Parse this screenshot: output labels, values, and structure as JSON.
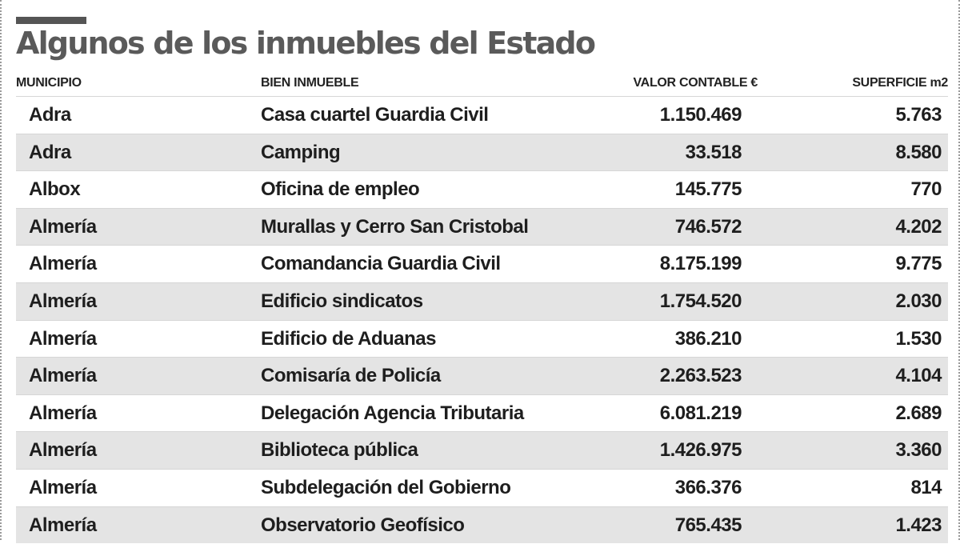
{
  "chart_data": {
    "type": "table",
    "title": "Algunos de los inmuebles del Estado",
    "columns": [
      "MUNICIPIO",
      "BIEN INMUEBLE",
      "VALOR CONTABLE €",
      "SUPERFICIE m2"
    ],
    "rows": [
      {
        "municipio": "Adra",
        "bien": "Casa cuartel Guardia Civil",
        "valor": "1.150.469",
        "superficie": "5.763"
      },
      {
        "municipio": "Adra",
        "bien": "Camping",
        "valor": "33.518",
        "superficie": "8.580"
      },
      {
        "municipio": "Albox",
        "bien": "Oficina de empleo",
        "valor": "145.775",
        "superficie": "770"
      },
      {
        "municipio": "Almería",
        "bien": "Murallas y Cerro San Cristobal",
        "valor": "746.572",
        "superficie": "4.202"
      },
      {
        "municipio": "Almería",
        "bien": "Comandancia Guardia Civil",
        "valor": "8.175.199",
        "superficie": "9.775"
      },
      {
        "municipio": "Almería",
        "bien": "Edificio sindicatos",
        "valor": "1.754.520",
        "superficie": "2.030"
      },
      {
        "municipio": "Almería",
        "bien": "Edificio de Aduanas",
        "valor": "386.210",
        "superficie": "1.530"
      },
      {
        "municipio": "Almería",
        "bien": "Comisaría de Policía",
        "valor": "2.263.523",
        "superficie": "4.104"
      },
      {
        "municipio": "Almería",
        "bien": "Delegación Agencia Tributaria",
        "valor": "6.081.219",
        "superficie": "2.689"
      },
      {
        "municipio": "Almería",
        "bien": "Biblioteca pública",
        "valor": "1.426.975",
        "superficie": "3.360"
      },
      {
        "municipio": "Almería",
        "bien": "Subdelegación del Gobierno",
        "valor": "366.376",
        "superficie": "814"
      },
      {
        "municipio": "Almería",
        "bien": "Observatorio Geofísico",
        "valor": "765.435",
        "superficie": "1.423"
      }
    ]
  },
  "colors": {
    "title": "#5a5a5a",
    "accent_bar": "#555555",
    "row_shade": "#e4e4e4",
    "text": "#1e1e1e"
  }
}
